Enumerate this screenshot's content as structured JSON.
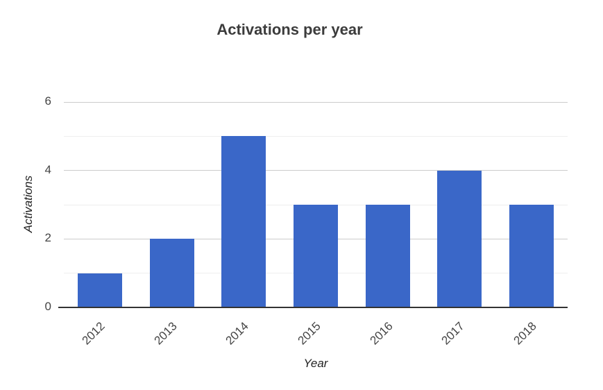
{
  "chart_data": {
    "type": "bar",
    "title": "Activations per year",
    "xlabel": "Year",
    "ylabel": "Activations",
    "categories": [
      "2012",
      "2013",
      "2014",
      "2015",
      "2016",
      "2017",
      "2018"
    ],
    "values": [
      1,
      2,
      5,
      3,
      3,
      4,
      3
    ],
    "ylim": [
      0,
      6
    ],
    "yticks_labeled": [
      0,
      2,
      4,
      6
    ],
    "yticks_minor": [
      1,
      3,
      5
    ],
    "grid": "horizontal",
    "legend": "none",
    "x_tick_rotation_deg": -45
  },
  "colors": {
    "background": "#ffffff",
    "bar": "#3a67c8",
    "title_text": "#3c3c3c",
    "axis_title_text": "#222222",
    "tick_text": "#444444",
    "major_gridline": "#cccccc",
    "minor_gridline": "#eeeeee",
    "baseline": "#333333"
  }
}
